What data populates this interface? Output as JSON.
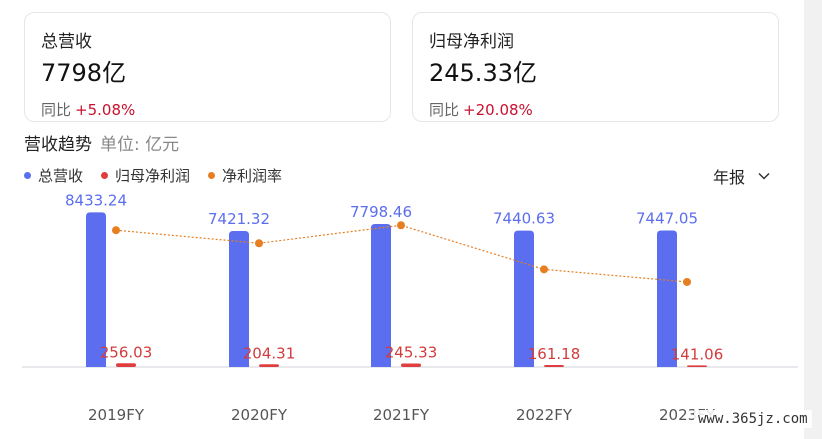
{
  "cards": [
    {
      "label": "总营收",
      "value": "7798亿",
      "yoy_label": "同比",
      "yoy_value": "+5.08%"
    },
    {
      "label": "归母净利润",
      "value": "245.33亿",
      "yoy_label": "同比",
      "yoy_value": "+20.08%"
    }
  ],
  "trend": {
    "title": "营收趋势",
    "unit": "单位: 亿元"
  },
  "legend": [
    {
      "label": "总营收",
      "color": "#5b6ef0"
    },
    {
      "label": "归母净利润",
      "color": "#e03e3e"
    },
    {
      "label": "净利润率",
      "color": "#e67e22"
    }
  ],
  "period_select": {
    "value": "年报",
    "icon": "chevron-down-icon"
  },
  "watermark": "www.365jz.com",
  "chart_data": {
    "type": "bar",
    "categories": [
      "2019FY",
      "2020FY",
      "2021FY",
      "2022FY",
      "2023FY"
    ],
    "series": [
      {
        "name": "总营收",
        "type": "bar",
        "color": "#5b6ef0",
        "values": [
          8433.24,
          7421.32,
          7798.46,
          7440.63,
          7447.05
        ],
        "labels": [
          "8433.24",
          "7421.32",
          "7798.46",
          "7440.63",
          "7447.05"
        ]
      },
      {
        "name": "归母净利润",
        "type": "bar",
        "color": "#e03e3e",
        "values": [
          256.03,
          204.31,
          245.33,
          161.18,
          141.06
        ],
        "labels": [
          "256.03",
          "204.31",
          "245.33",
          "161.18",
          "141.06"
        ]
      },
      {
        "name": "净利润率",
        "type": "line",
        "color": "#e67e22",
        "values": [
          3.04,
          2.75,
          3.15,
          2.17,
          1.89
        ]
      }
    ],
    "ylim": [
      0,
      9000
    ],
    "rate_ylim": [
      0,
      4
    ],
    "grid": false,
    "legend_position": "top-left"
  }
}
